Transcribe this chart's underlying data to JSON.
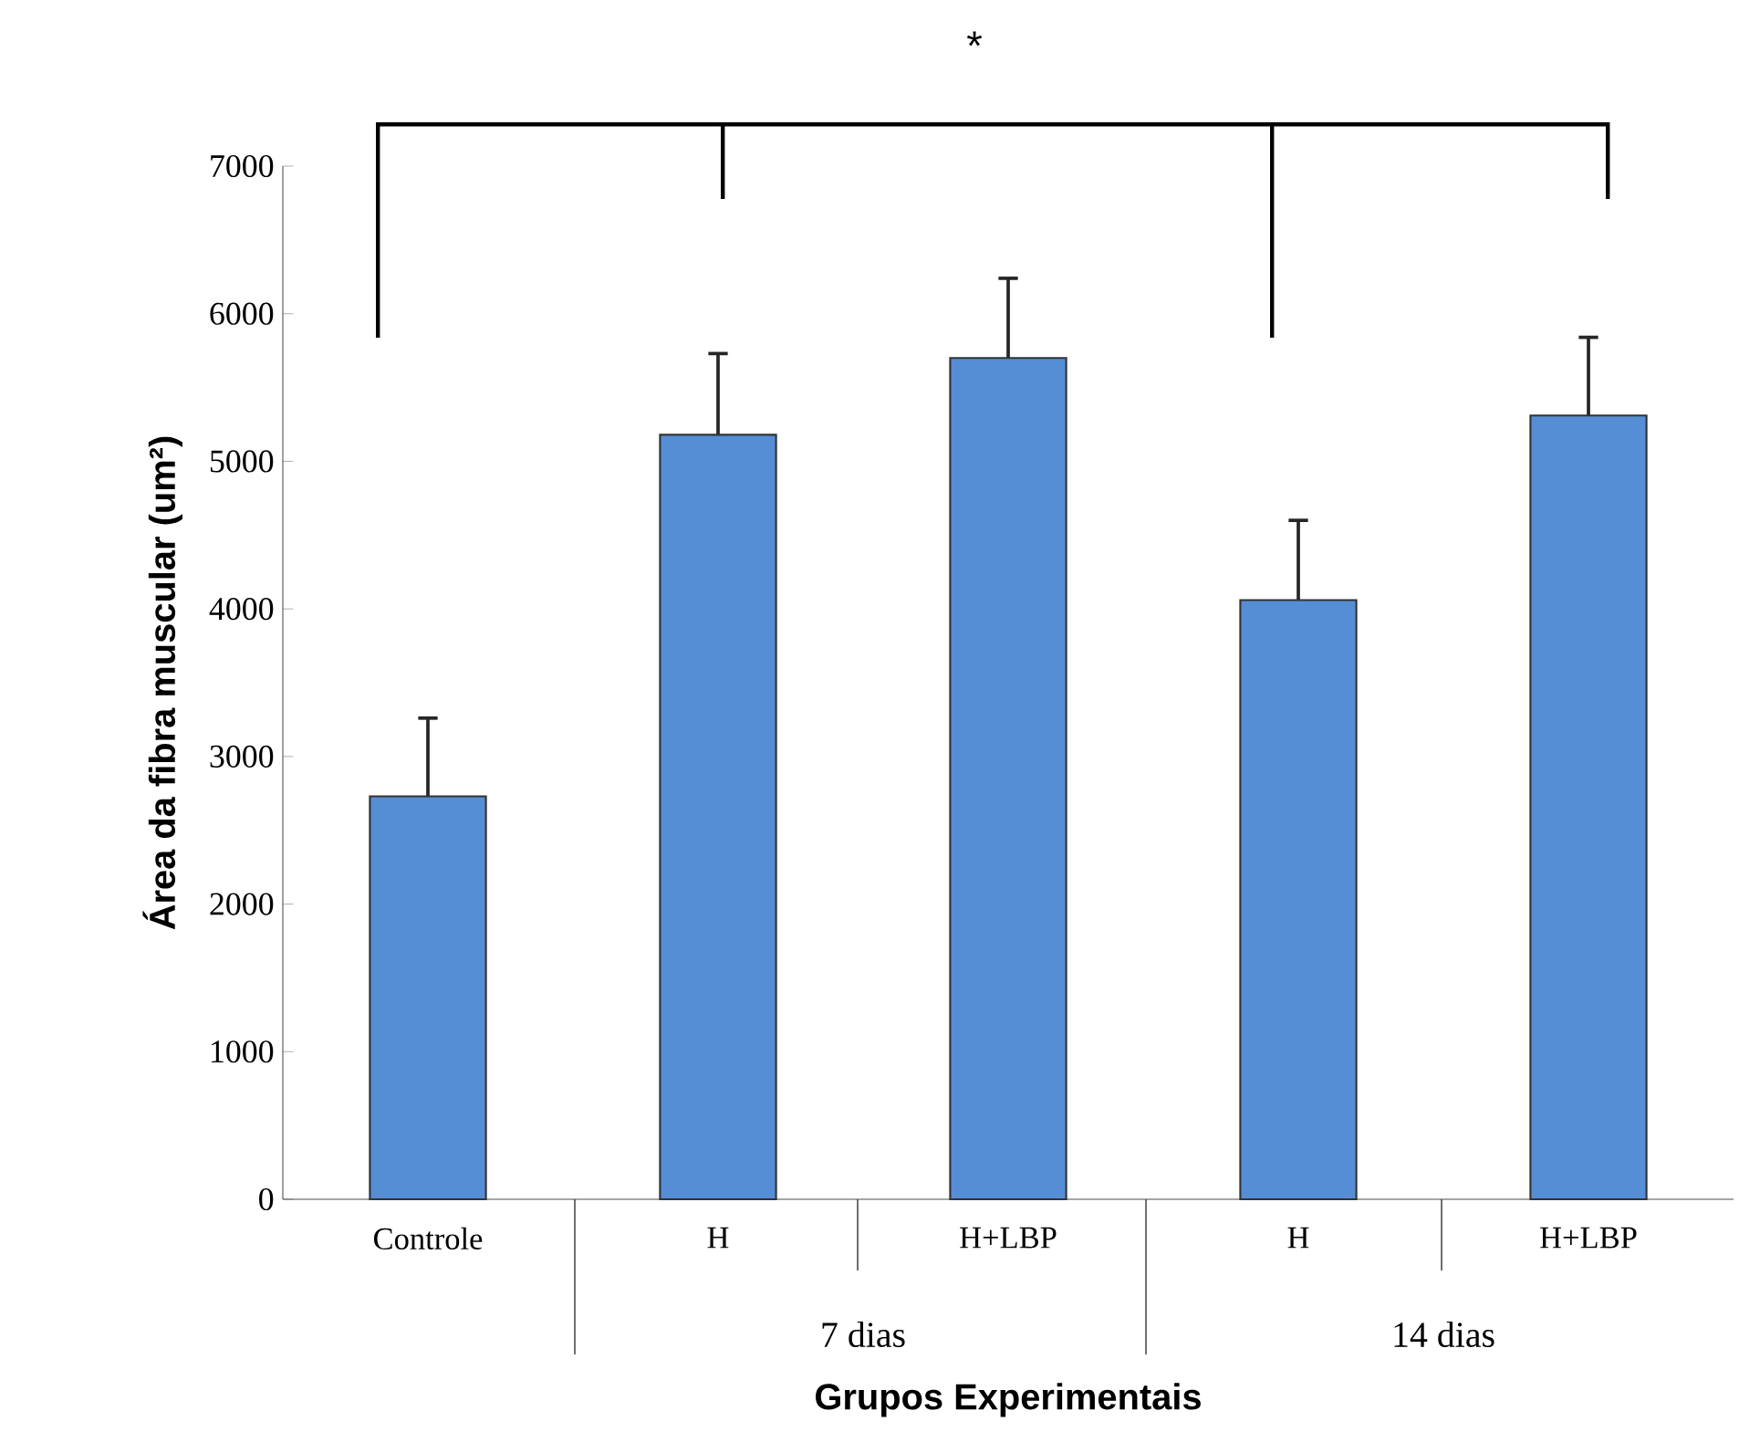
{
  "chart_data": {
    "type": "bar",
    "categories": [
      "Controle",
      "H",
      "H+LBP",
      "H",
      "H+LBP"
    ],
    "values": [
      2730,
      5180,
      5700,
      4060,
      5310
    ],
    "errors": [
      530,
      550,
      540,
      540,
      530
    ],
    "color": "#558ed5",
    "ylim": [
      0,
      7000
    ],
    "yticks": [
      0,
      1000,
      2000,
      3000,
      4000,
      5000,
      6000,
      7000
    ],
    "xlabel": "Grupos Experimentais",
    "ylabel": "Área da fibra muscular (um²)",
    "annotations": [
      "*",
      "7 dias",
      "14 dias"
    ],
    "grid": false
  }
}
